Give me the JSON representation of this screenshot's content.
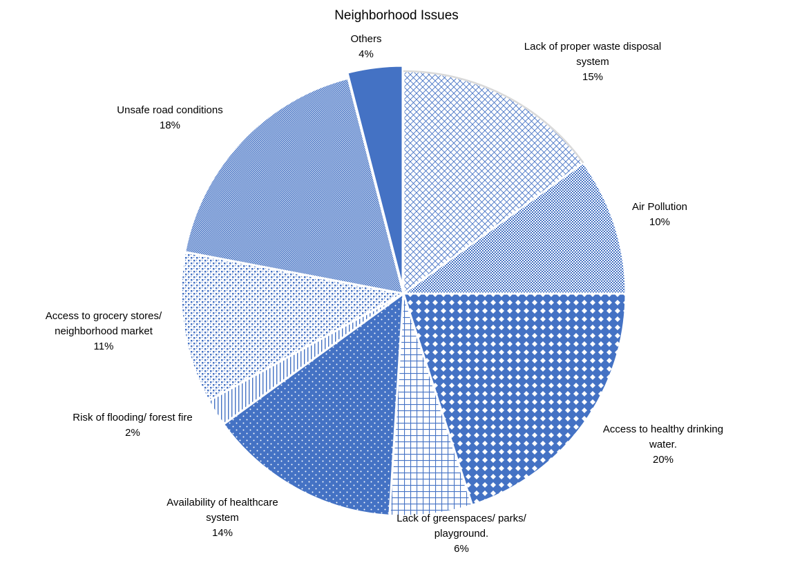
{
  "chart_data": {
    "type": "pie",
    "title": "Neighborhood Issues",
    "slices": [
      {
        "label_lines": [
          "Lack of proper waste disposal",
          "system"
        ],
        "value": 15,
        "value_label": "15%",
        "pattern": "diagonal-cross-light"
      },
      {
        "label_lines": [
          "Air Pollution"
        ],
        "value": 10,
        "value_label": "10%",
        "pattern": "small-check"
      },
      {
        "label_lines": [
          "Access to healthy drinking",
          "water."
        ],
        "value": 20,
        "value_label": "20%",
        "pattern": "large-diamond"
      },
      {
        "label_lines": [
          "Lack of greenspaces/ parks/",
          "playground."
        ],
        "value": 6,
        "value_label": "6%",
        "pattern": "grid"
      },
      {
        "label_lines": [
          "Availability of healthcare",
          "system"
        ],
        "value": 14,
        "value_label": "14%",
        "pattern": "white-dots"
      },
      {
        "label_lines": [
          "Risk of flooding/ forest fire"
        ],
        "value": 2,
        "value_label": "2%",
        "pattern": "vertical-lines"
      },
      {
        "label_lines": [
          "Access to grocery stores/",
          "neighborhood market"
        ],
        "value": 11,
        "value_label": "11%",
        "pattern": "sparse-dots"
      },
      {
        "label_lines": [
          "Unsafe road conditions"
        ],
        "value": 18,
        "value_label": "18%",
        "pattern": "fine-check"
      },
      {
        "label_lines": [
          "Others"
        ],
        "value": 4,
        "value_label": "4%",
        "pattern": "solid"
      }
    ],
    "colors": {
      "primary": "#4472C4",
      "background": "#ffffff",
      "separator": "#ffffff",
      "text": "#000000"
    },
    "start_angle_deg": 0,
    "direction": "clockwise",
    "legend": "none"
  }
}
